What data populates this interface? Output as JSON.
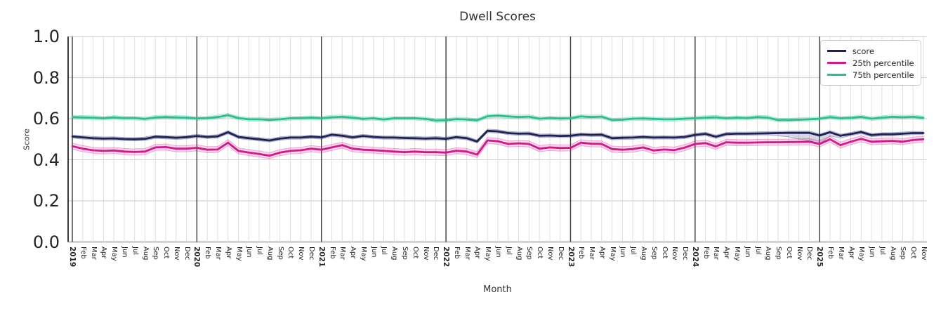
{
  "title": "Dwell Scores",
  "chart_data": {
    "type": "line",
    "title": "Dwell Scores",
    "xlabel": "Month",
    "ylabel": "Score",
    "ylim": [
      0.0,
      1.0
    ],
    "y_tick_labels": [
      "1.0",
      "0.8",
      "0.6",
      "0.4",
      "0.2",
      "0.0"
    ],
    "y_tick_values": [
      1.0,
      0.8,
      0.6,
      0.4,
      0.2,
      0.0
    ],
    "grid": true,
    "legend_position": "upper right",
    "x_tick_labels": [
      "2019",
      "Feb",
      "Mar",
      "Apr",
      "May",
      "Jun",
      "Jul",
      "Aug",
      "Sep",
      "Oct",
      "Nov",
      "Dec",
      "2020",
      "Feb",
      "Mar",
      "Apr",
      "May",
      "Jun",
      "Jul",
      "Aug",
      "Sep",
      "Oct",
      "Nov",
      "Dec",
      "2021",
      "Feb",
      "Mar",
      "Apr",
      "May",
      "Jun",
      "Jul",
      "Aug",
      "Sep",
      "Oct",
      "Nov",
      "Dec",
      "2022",
      "Feb",
      "Mar",
      "Apr",
      "May",
      "Jun",
      "Jul",
      "Aug",
      "Sep",
      "Oct",
      "Nov",
      "Dec",
      "2023",
      "Feb",
      "Mar",
      "Apr",
      "May",
      "Jun",
      "Jul",
      "Aug",
      "Sep",
      "Oct",
      "Nov",
      "Dec",
      "2024",
      "Feb",
      "Mar",
      "Apr",
      "May",
      "Jun",
      "Jul",
      "Aug",
      "Sep",
      "Oct",
      "Nov",
      "Dec",
      "2025",
      "Feb",
      "Mar",
      "Apr",
      "May",
      "Jun",
      "Jul",
      "Aug",
      "Sep",
      "Oct",
      "Nov"
    ],
    "year_indices": [
      0,
      12,
      24,
      36,
      48,
      60,
      72
    ],
    "series": [
      {
        "name": "score",
        "color": "#1e2158",
        "band_halfwidth": 0.008,
        "lower_extra": {
          "from_index": 68,
          "offsets": [
            0.005,
            0.012,
            0.022,
            0.03,
            0.033,
            0.01,
            0.003
          ]
        },
        "values": [
          0.513,
          0.509,
          0.505,
          0.503,
          0.504,
          0.501,
          0.5,
          0.502,
          0.512,
          0.51,
          0.507,
          0.51,
          0.516,
          0.511,
          0.514,
          0.534,
          0.511,
          0.505,
          0.5,
          0.494,
          0.503,
          0.508,
          0.508,
          0.512,
          0.509,
          0.522,
          0.517,
          0.509,
          0.516,
          0.511,
          0.508,
          0.508,
          0.506,
          0.505,
          0.503,
          0.505,
          0.502,
          0.51,
          0.505,
          0.489,
          0.541,
          0.538,
          0.53,
          0.527,
          0.528,
          0.517,
          0.518,
          0.516,
          0.517,
          0.523,
          0.521,
          0.522,
          0.505,
          0.507,
          0.508,
          0.511,
          0.508,
          0.509,
          0.508,
          0.511,
          0.521,
          0.526,
          0.512,
          0.525,
          0.527,
          0.527,
          0.528,
          0.529,
          0.53,
          0.531,
          0.531,
          0.531,
          0.518,
          0.534,
          0.517,
          0.525,
          0.535,
          0.52,
          0.524,
          0.524,
          0.527,
          0.53,
          0.53
        ]
      },
      {
        "name": "25th percentile",
        "color": "#d2198c",
        "band_halfwidth": 0.015,
        "values": [
          0.466,
          0.454,
          0.446,
          0.443,
          0.445,
          0.44,
          0.438,
          0.44,
          0.46,
          0.462,
          0.454,
          0.454,
          0.458,
          0.449,
          0.45,
          0.483,
          0.443,
          0.435,
          0.428,
          0.42,
          0.435,
          0.443,
          0.446,
          0.454,
          0.449,
          0.46,
          0.471,
          0.454,
          0.449,
          0.447,
          0.443,
          0.44,
          0.437,
          0.44,
          0.437,
          0.437,
          0.435,
          0.444,
          0.44,
          0.425,
          0.494,
          0.49,
          0.477,
          0.48,
          0.477,
          0.454,
          0.46,
          0.457,
          0.458,
          0.483,
          0.478,
          0.477,
          0.452,
          0.449,
          0.452,
          0.46,
          0.445,
          0.45,
          0.447,
          0.459,
          0.477,
          0.481,
          0.465,
          0.485,
          0.483,
          0.483,
          0.484,
          0.485,
          0.485,
          0.486,
          0.487,
          0.488,
          0.477,
          0.5,
          0.471,
          0.488,
          0.502,
          0.488,
          0.49,
          0.492,
          0.488,
          0.496,
          0.5
        ]
      },
      {
        "name": "75th percentile",
        "color": "#2abd92",
        "band_halfwidth": 0.009,
        "values": [
          0.608,
          0.606,
          0.605,
          0.602,
          0.606,
          0.603,
          0.603,
          0.599,
          0.606,
          0.608,
          0.606,
          0.605,
          0.601,
          0.603,
          0.608,
          0.617,
          0.603,
          0.597,
          0.597,
          0.594,
          0.597,
          0.602,
          0.603,
          0.605,
          0.602,
          0.607,
          0.609,
          0.605,
          0.599,
          0.602,
          0.596,
          0.602,
          0.602,
          0.602,
          0.599,
          0.591,
          0.592,
          0.598,
          0.596,
          0.592,
          0.612,
          0.615,
          0.611,
          0.608,
          0.61,
          0.6,
          0.603,
          0.601,
          0.602,
          0.611,
          0.608,
          0.61,
          0.593,
          0.595,
          0.6,
          0.601,
          0.599,
          0.597,
          0.597,
          0.6,
          0.602,
          0.605,
          0.607,
          0.602,
          0.605,
          0.603,
          0.608,
          0.605,
          0.593,
          0.593,
          0.595,
          0.597,
          0.6,
          0.608,
          0.602,
          0.604,
          0.609,
          0.6,
          0.605,
          0.609,
          0.607,
          0.609,
          0.604
        ]
      }
    ],
    "colors": {
      "grid_minor": "#dedede",
      "grid_major": "#d2d2d2",
      "year_line": "#3a3a3a",
      "spine": "#262626",
      "baseline": "#c9c9c9",
      "text": "#262626"
    }
  }
}
